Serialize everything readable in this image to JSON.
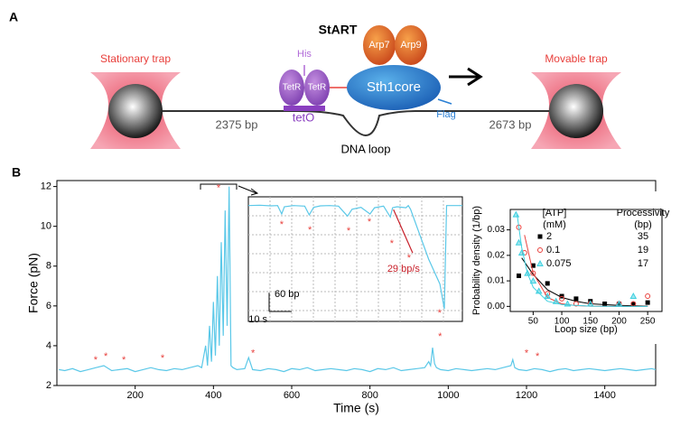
{
  "diagram": {
    "panel_a": "A",
    "panel_b": "B",
    "construct": "StART",
    "left_trap": "Stationary trap",
    "right_trap": "Movable trap",
    "his": "His",
    "tetr_1": "TetR",
    "tetr_2": "TetR",
    "teto": "tetO",
    "arp7": "Arp7",
    "arp9": "Arp9",
    "sth1": "Sth1core",
    "flag": "Flag",
    "left_dna": "2375 bp",
    "loop": "DNA loop",
    "right_dna": "2673 bp"
  },
  "chart_data": [
    {
      "type": "line",
      "xlabel": "Time (s)",
      "ylabel": "Force (pN)",
      "color": "#5bc8e8",
      "xlim": [
        0,
        1530
      ],
      "ylim": [
        2,
        12.3
      ],
      "xticks": [
        200,
        400,
        600,
        800,
        1000,
        1200,
        1400
      ],
      "yticks": [
        2,
        4,
        6,
        8,
        10,
        12
      ],
      "x": [
        5,
        20,
        40,
        60,
        80,
        100,
        120,
        140,
        160,
        180,
        200,
        220,
        240,
        260,
        280,
        300,
        320,
        340,
        360,
        370,
        380,
        385,
        390,
        395,
        400,
        405,
        410,
        415,
        420,
        425,
        430,
        435,
        440,
        445,
        450,
        460,
        480,
        490,
        500,
        520,
        540,
        560,
        580,
        600,
        620,
        640,
        660,
        680,
        700,
        720,
        740,
        760,
        780,
        800,
        820,
        840,
        860,
        880,
        900,
        920,
        940,
        950,
        955,
        960,
        965,
        970,
        980,
        1000,
        1020,
        1040,
        1060,
        1080,
        1100,
        1120,
        1140,
        1160,
        1165,
        1170,
        1180,
        1200,
        1220,
        1240,
        1260,
        1280,
        1300,
        1320,
        1340,
        1360,
        1380,
        1400,
        1420,
        1440,
        1460,
        1480,
        1500,
        1520,
        1530
      ],
      "values": [
        2.8,
        2.75,
        2.85,
        2.7,
        2.8,
        2.9,
        3.0,
        2.75,
        2.8,
        2.85,
        2.7,
        2.8,
        2.9,
        2.8,
        2.75,
        2.85,
        2.8,
        2.9,
        3.0,
        2.9,
        4.0,
        3.0,
        5.0,
        3.2,
        6.2,
        3.5,
        7.5,
        4.0,
        9.2,
        4.5,
        10.8,
        5.0,
        12.0,
        3.0,
        2.9,
        2.8,
        2.85,
        3.4,
        2.8,
        2.75,
        2.85,
        2.8,
        2.7,
        2.85,
        2.8,
        2.9,
        2.75,
        2.8,
        2.85,
        2.8,
        2.75,
        2.85,
        2.8,
        2.7,
        2.85,
        2.8,
        2.9,
        2.75,
        2.8,
        2.85,
        2.9,
        3.2,
        3.0,
        3.9,
        3.1,
        2.9,
        2.8,
        2.75,
        2.85,
        2.8,
        2.75,
        2.8,
        2.85,
        2.8,
        2.9,
        3.0,
        3.3,
        2.9,
        2.8,
        2.75,
        2.85,
        2.8,
        2.7,
        2.8,
        2.85,
        2.75,
        2.8,
        2.85,
        2.8,
        2.75,
        2.8,
        2.85,
        2.8,
        2.75,
        2.8,
        2.85,
        2.8
      ],
      "annotations": [
        {
          "text": "*",
          "x": 99,
          "y": 3.27
        },
        {
          "text": "*",
          "x": 125,
          "y": 3.45
        },
        {
          "text": "*",
          "x": 171,
          "y": 3.27
        },
        {
          "text": "*",
          "x": 270,
          "y": 3.36
        },
        {
          "text": "*",
          "x": 413,
          "y": 11.9
        },
        {
          "text": "*",
          "x": 501,
          "y": 3.6
        },
        {
          "text": "*",
          "x": 979,
          "y": 4.45
        },
        {
          "text": "*",
          "x": 1200,
          "y": 3.6
        },
        {
          "text": "*",
          "x": 1228,
          "y": 3.45
        }
      ]
    },
    {
      "type": "inset",
      "color": "#5bc8e8",
      "xlim": [
        0,
        95
      ],
      "ylim": [
        0,
        400
      ],
      "x": [
        0,
        5,
        10,
        13,
        14.8,
        16,
        20,
        25,
        27,
        29,
        32,
        36,
        40,
        44,
        46,
        50,
        54,
        56,
        60,
        63,
        64,
        66,
        70,
        71,
        72,
        75,
        80,
        85,
        86.5,
        87,
        88,
        90,
        95
      ],
      "values": [
        372,
        373,
        371,
        372,
        345,
        368,
        372,
        370,
        342,
        366,
        371,
        372,
        370,
        338,
        360,
        366,
        345,
        365,
        370,
        335,
        365,
        368,
        365,
        372,
        360,
        300,
        200,
        120,
        60,
        40,
        372,
        372,
        372
      ],
      "scale_bar": {
        "x_length": 10,
        "x_label": "10 s",
        "y_length": 60,
        "y_label": "60 bp"
      },
      "fit": {
        "x": [
          64.4,
          72.9
        ],
        "values": [
          359,
          220
        ],
        "label": "29 bp/s",
        "color": "#c8202a"
      },
      "annotations": [
        {
          "text": "*",
          "x": 14.8,
          "y": 310
        },
        {
          "text": "*",
          "x": 27.3,
          "y": 293
        },
        {
          "text": "*",
          "x": 44.5,
          "y": 290
        },
        {
          "text": "*",
          "x": 53.7,
          "y": 319
        },
        {
          "text": "*",
          "x": 63.7,
          "y": 249
        },
        {
          "text": "*",
          "x": 71.3,
          "y": 203
        },
        {
          "text": "*",
          "x": 84.9,
          "y": 26
        }
      ]
    },
    {
      "type": "scatter",
      "xlabel": "Loop size (bp)",
      "ylabel": "Probability density (1/bp)",
      "xlim": [
        10,
        275
      ],
      "ylim": [
        -0.002,
        0.038
      ],
      "xticks": [
        50,
        100,
        150,
        200,
        250
      ],
      "yticks": [
        {
          "value": 0,
          "label": "0.00"
        },
        {
          "value": 0.01,
          "label": "0.01"
        },
        {
          "value": 0.02,
          "label": "0.02"
        },
        {
          "value": 0.03,
          "label": "0.03"
        }
      ],
      "legend_headers": [
        "[ATP]",
        "(mM)",
        "Processivity",
        "(bp)"
      ],
      "series": [
        {
          "name": "2",
          "processivity": 35,
          "color": "#000000",
          "marker": "square",
          "x": [
            25,
            50,
            75,
            100,
            125,
            150,
            175,
            200,
            225,
            250
          ],
          "values": [
            0.012,
            0.016,
            0.009,
            0.004,
            0.003,
            0.002,
            0.001,
            0.001,
            0.0008,
            0.0015
          ],
          "fit_x": [
            30,
            50,
            75,
            100,
            125,
            150,
            200,
            250
          ],
          "fit_values": [
            0.019,
            0.0125,
            0.0065,
            0.0035,
            0.002,
            0.001,
            0.0004,
            0.0001
          ]
        },
        {
          "name": "0.1",
          "processivity": 19,
          "color": "#e8403c",
          "marker": "circle",
          "x": [
            25,
            35,
            50,
            75,
            100,
            125,
            150,
            200,
            225,
            250
          ],
          "values": [
            0.031,
            0.021,
            0.013,
            0.005,
            0.003,
            0.001,
            0.001,
            0.001,
            0.001,
            0.004
          ],
          "fit_x": [
            35,
            50,
            75,
            100,
            125,
            150,
            200,
            250
          ],
          "fit_values": [
            0.028,
            0.013,
            0.0035,
            0.001,
            0.0003,
            0.0001,
            0,
            0
          ]
        },
        {
          "name": "0.075",
          "processivity": 17,
          "color": "#3fd0e0",
          "marker": "triangle",
          "x": [
            20,
            25,
            30,
            40,
            50,
            60,
            75,
            90,
            110,
            150,
            200,
            225
          ],
          "values": [
            0.036,
            0.025,
            0.021,
            0.013,
            0.01,
            0.006,
            0.004,
            0.002,
            0.001,
            0.001,
            0.001,
            0.004
          ],
          "fit_x": [
            22,
            30,
            40,
            50,
            75,
            100,
            150,
            200,
            250
          ],
          "fit_values": [
            0.036,
            0.023,
            0.013,
            0.0075,
            0.002,
            0.0007,
            0.0001,
            0,
            0
          ]
        }
      ]
    }
  ]
}
